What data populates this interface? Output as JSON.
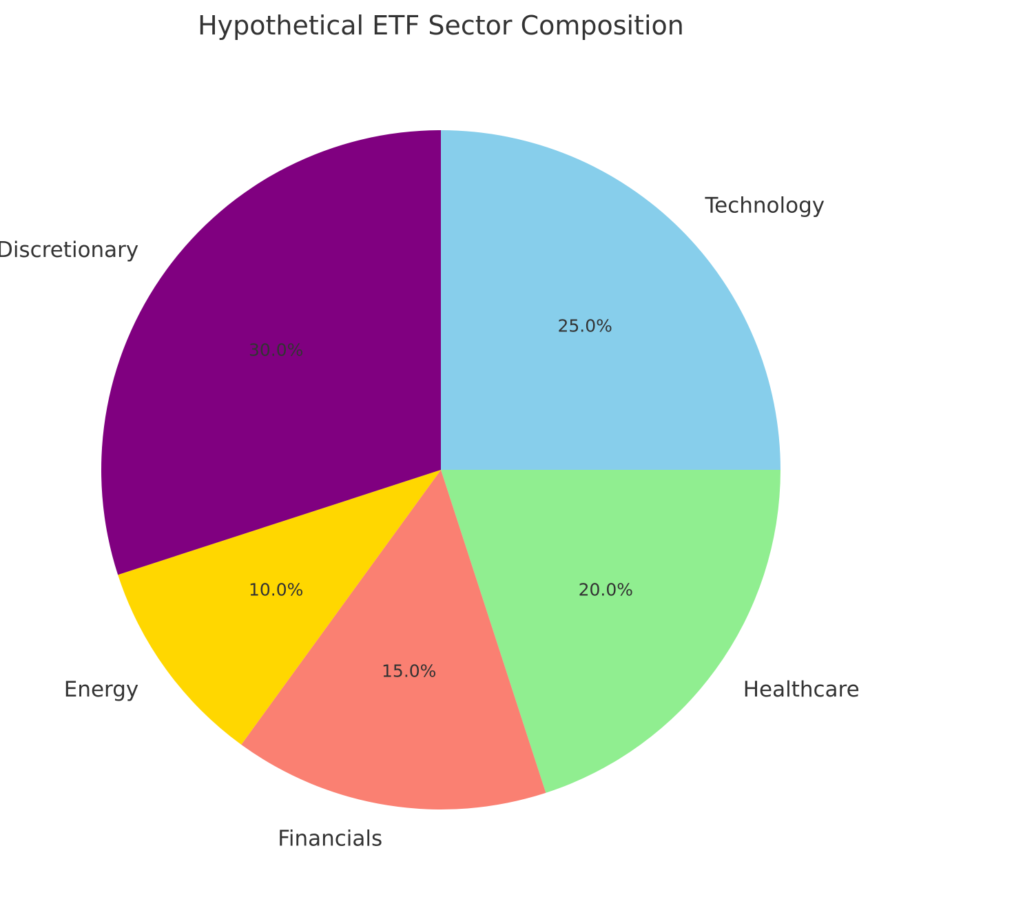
{
  "chart_data": {
    "type": "pie",
    "title": "Hypothetical ETF Sector Composition",
    "start_angle_deg": 90,
    "direction": "clockwise",
    "slices": [
      {
        "label": "Technology",
        "value": 25.0,
        "pct_label": "25.0%",
        "color": "#87CEEB"
      },
      {
        "label": "Healthcare",
        "value": 20.0,
        "pct_label": "20.0%",
        "color": "#90EE90"
      },
      {
        "label": "Financials",
        "value": 15.0,
        "pct_label": "15.0%",
        "color": "#FA8072"
      },
      {
        "label": "Energy",
        "value": 10.0,
        "pct_label": "10.0%",
        "color": "#FFD700"
      },
      {
        "label": "Consumer Discretionary",
        "value": 30.0,
        "pct_label": "30.0%",
        "color": "#800080"
      }
    ]
  }
}
